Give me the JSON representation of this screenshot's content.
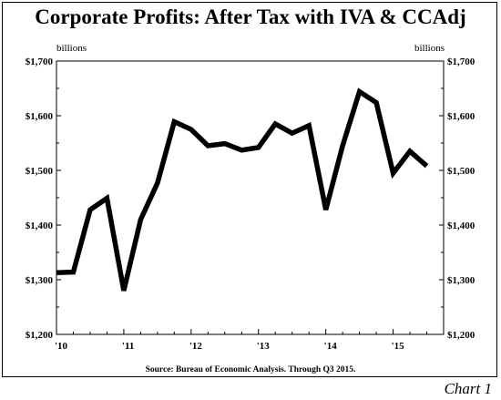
{
  "chart_data": {
    "type": "line",
    "title": "Corporate Profits: After Tax with IVA & CCAdj",
    "unit_label_left": "billions",
    "unit_label_right": "billions",
    "source": "Source:  Bureau of Economic Analysis. Through Q3 2015.",
    "chart_number": "Chart 1",
    "ylim": [
      1200,
      1700
    ],
    "y_ticks": [
      1200,
      1300,
      1400,
      1500,
      1600,
      1700
    ],
    "y_tick_labels": [
      "$1,200",
      "$1,300",
      "$1,400",
      "$1,500",
      "$1,600",
      "$1,700"
    ],
    "x_range": [
      2010.0,
      2015.75
    ],
    "x_ticks": [
      2010,
      2011,
      2012,
      2013,
      2014,
      2015
    ],
    "x_tick_labels": [
      "'10",
      "'11",
      "'12",
      "'13",
      "'14",
      "'15"
    ],
    "grid": false,
    "line_color": "#000000",
    "series": [
      {
        "x": [
          "2010 Q1",
          "2010 Q2",
          "2010 Q3",
          "2010 Q4",
          "2011 Q1",
          "2011 Q2",
          "2011 Q3",
          "2011 Q4",
          "2012 Q1",
          "2012 Q2",
          "2012 Q3",
          "2012 Q4",
          "2013 Q1",
          "2013 Q2",
          "2013 Q3",
          "2013 Q4",
          "2014 Q1",
          "2014 Q2",
          "2014 Q3",
          "2014 Q4",
          "2015 Q1",
          "2015 Q2",
          "2015 Q3"
        ],
        "values": [
          1313,
          1314,
          1428,
          1449,
          1280,
          1410,
          1477,
          1589,
          1575,
          1545,
          1549,
          1537,
          1542,
          1585,
          1568,
          1582,
          1428,
          1545,
          1644,
          1624,
          1495,
          1535,
          1508
        ]
      }
    ]
  }
}
